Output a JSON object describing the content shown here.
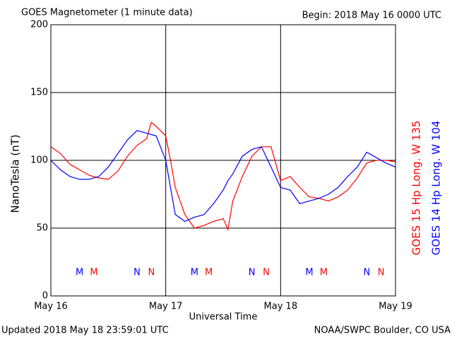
{
  "chart_data": {
    "type": "line",
    "title": "GOES Magnetometer (1 minute data)",
    "subtitle": "Begin:  2018 May 16 0000 UTC",
    "ylabel": "NanoTesla (nT)",
    "xlabel": "Universal Time",
    "footer_left": "Updated 2018 May 18 23:59:01 UTC",
    "footer_right": "NOAA/SWPC Boulder, CO USA",
    "xlim": [
      0,
      72
    ],
    "xticks": [
      {
        "value": 0,
        "label": "May 16"
      },
      {
        "value": 24,
        "label": "May 17"
      },
      {
        "value": 48,
        "label": "May 18"
      },
      {
        "value": 72,
        "label": "May 19"
      }
    ],
    "ylim": [
      0,
      200
    ],
    "yticks": [
      0,
      50,
      100,
      150,
      200
    ],
    "grid": true,
    "x": [
      0,
      2,
      4,
      6,
      8,
      10,
      12,
      14,
      16,
      18,
      20,
      21,
      22,
      24,
      25,
      26,
      28,
      30,
      32,
      34,
      36,
      37,
      38,
      40,
      42,
      44,
      46,
      48,
      50,
      52,
      54,
      56,
      58,
      60,
      62,
      64,
      66,
      68,
      70,
      72
    ],
    "series": [
      {
        "name": "GOES 15 Hp  Long. W 135",
        "color": "#ff0000",
        "values": [
          110,
          105,
          97,
          93,
          89,
          87,
          86,
          92,
          103,
          111,
          116,
          128,
          125,
          118,
          100,
          80,
          60,
          50,
          52,
          55,
          57,
          49,
          70,
          88,
          103,
          110,
          110,
          85,
          88,
          80,
          73,
          72,
          70,
          73,
          78,
          87,
          98,
          100,
          100,
          99
        ]
      },
      {
        "name": "GOES 14 Hp  Long. W 104",
        "color": "#0000ff",
        "values": [
          100,
          93,
          88,
          86,
          86,
          88,
          95,
          105,
          115,
          122,
          120,
          119,
          118,
          100,
          80,
          60,
          55,
          58,
          60,
          68,
          78,
          85,
          90,
          103,
          108,
          110,
          95,
          80,
          78,
          68,
          70,
          72,
          75,
          80,
          88,
          95,
          106,
          102,
          98,
          95
        ]
      }
    ],
    "markers": [
      {
        "x": 6,
        "label": "M",
        "color": "#0000ff"
      },
      {
        "x": 9,
        "label": "M",
        "color": "#ff0000"
      },
      {
        "x": 18,
        "label": "N",
        "color": "#0000ff"
      },
      {
        "x": 21,
        "label": "N",
        "color": "#ff0000"
      },
      {
        "x": 30,
        "label": "M",
        "color": "#0000ff"
      },
      {
        "x": 33,
        "label": "M",
        "color": "#ff0000"
      },
      {
        "x": 42,
        "label": "N",
        "color": "#0000ff"
      },
      {
        "x": 45,
        "label": "N",
        "color": "#ff0000"
      },
      {
        "x": 54,
        "label": "M",
        "color": "#0000ff"
      },
      {
        "x": 57,
        "label": "M",
        "color": "#ff0000"
      },
      {
        "x": 66,
        "label": "N",
        "color": "#0000ff"
      },
      {
        "x": 69,
        "label": "N",
        "color": "#ff0000"
      }
    ]
  }
}
